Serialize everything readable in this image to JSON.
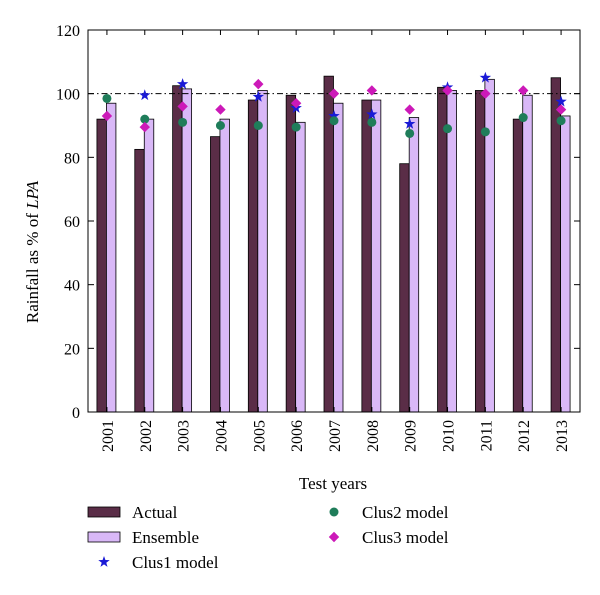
{
  "chart_data": {
    "type": "bar",
    "xlabel": "Test years",
    "ylabel_prefix": "Rainfall as % of ",
    "ylabel_italic": "LPA",
    "ylim": [
      0,
      120
    ],
    "yticks": [
      0,
      20,
      40,
      60,
      80,
      100,
      120
    ],
    "reference_line": 100,
    "categories": [
      "2001",
      "2002",
      "2003",
      "2004",
      "2005",
      "2006",
      "2007",
      "2008",
      "2009",
      "2010",
      "2011",
      "2012",
      "2013"
    ],
    "series": [
      {
        "name": "Actual",
        "kind": "bar",
        "color": "#5a2d47",
        "values": [
          92,
          82.5,
          102.5,
          86.5,
          98,
          99.5,
          105.5,
          98,
          78,
          102,
          101,
          92,
          105
        ]
      },
      {
        "name": "Ensemble",
        "kind": "bar",
        "color": "#d9b8f7",
        "values": [
          97,
          92,
          101.5,
          92,
          101,
          91,
          97,
          98,
          92.5,
          101,
          104.5,
          99.5,
          93
        ]
      },
      {
        "name": "Clus1 model",
        "kind": "marker",
        "marker": "star",
        "color": "#1a1ad6",
        "values": [
          null,
          99.5,
          103,
          null,
          99,
          95.5,
          93,
          93.5,
          90.5,
          102,
          105,
          null,
          97.5
        ]
      },
      {
        "name": "Clus2 model",
        "kind": "marker",
        "marker": "circle",
        "color": "#1f7d5a",
        "values": [
          98.5,
          92,
          91,
          90,
          90,
          89.5,
          91.5,
          91,
          87.5,
          89,
          88,
          92.5,
          91.5
        ]
      },
      {
        "name": "Clus3 model",
        "kind": "marker",
        "marker": "diamond",
        "color": "#cc19b8",
        "values": [
          93,
          89.5,
          96,
          95,
          103,
          97,
          100,
          101,
          95,
          101,
          100,
          101,
          95
        ]
      }
    ],
    "legend_placement": "bottom"
  }
}
